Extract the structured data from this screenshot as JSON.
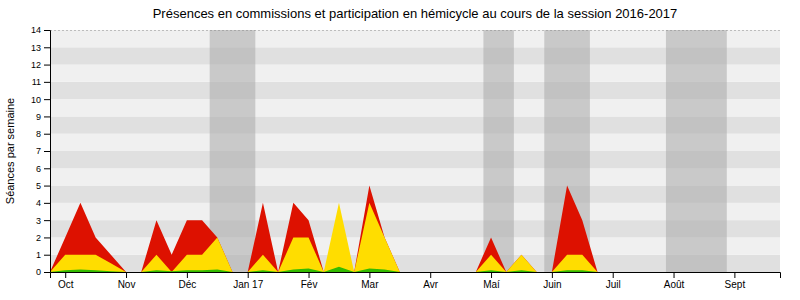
{
  "chart_data": {
    "type": "area",
    "stacked": false,
    "title": "Présences en commissions et participation en hémicycle au cours de la session 2016-2017",
    "ylabel": "Séances par semaine",
    "x": [
      0,
      1,
      2,
      3,
      4,
      5,
      6,
      7,
      8,
      9,
      10,
      11,
      12,
      13,
      14,
      15,
      16,
      17,
      18,
      19,
      20,
      21,
      22,
      23,
      24,
      25,
      26,
      27,
      28,
      29,
      30,
      31,
      32,
      33,
      34,
      35,
      36,
      37,
      38,
      39,
      40,
      41,
      42,
      43,
      44,
      45,
      46,
      47
    ],
    "xlim": [
      0,
      48
    ],
    "xticks": [
      {
        "value": 1,
        "label": "Oct"
      },
      {
        "value": 5,
        "label": "Nov"
      },
      {
        "value": 9,
        "label": "Déc"
      },
      {
        "value": 13,
        "label": "Jan 17"
      },
      {
        "value": 17,
        "label": "Fév"
      },
      {
        "value": 21,
        "label": "Mar"
      },
      {
        "value": 25,
        "label": "Avr"
      },
      {
        "value": 29,
        "label": "Maí"
      },
      {
        "value": 33,
        "label": "Juin"
      },
      {
        "value": 37,
        "label": "Juil"
      },
      {
        "value": 41,
        "label": "Août"
      },
      {
        "value": 45,
        "label": "Sept"
      }
    ],
    "ylim": [
      0,
      14
    ],
    "yticks": [
      0,
      1,
      2,
      3,
      4,
      5,
      6,
      7,
      8,
      9,
      10,
      11,
      12,
      13,
      14
    ],
    "shade_regions": [
      [
        10.5,
        13.5
      ],
      [
        28.5,
        30.5
      ],
      [
        32.5,
        35.5
      ],
      [
        40.5,
        44.5
      ]
    ],
    "series": [
      {
        "color": "#dd1100",
        "values": [
          0,
          2,
          4,
          2,
          1,
          0,
          0,
          3,
          1,
          3,
          3,
          2,
          0,
          0,
          4,
          0,
          4,
          3,
          0,
          2,
          0,
          5,
          2,
          0,
          0,
          0,
          0,
          0,
          0,
          2,
          0,
          1,
          0,
          0,
          5,
          3,
          0,
          0,
          0,
          0,
          0,
          0,
          0,
          0,
          0,
          0,
          0,
          0
        ]
      },
      {
        "color": "#ffdd00",
        "values": [
          0,
          1,
          1,
          1,
          0.5,
          0,
          0,
          1,
          0,
          1,
          1,
          2,
          0,
          0,
          1,
          0,
          2,
          2,
          0,
          4,
          0,
          4,
          2,
          0,
          0,
          0,
          0,
          0,
          0,
          1,
          0,
          1,
          0,
          0,
          1,
          1,
          0,
          0,
          0,
          0,
          0,
          0,
          0,
          0,
          0,
          0,
          0,
          0
        ]
      },
      {
        "color": "#33bb00",
        "values": [
          0,
          0.1,
          0.15,
          0.1,
          0.05,
          0,
          0,
          0.1,
          0.05,
          0.1,
          0.1,
          0.15,
          0,
          0,
          0.1,
          0,
          0.15,
          0.2,
          0,
          0.3,
          0,
          0.2,
          0.15,
          0,
          0,
          0,
          0,
          0,
          0,
          0.1,
          0,
          0.1,
          0,
          0,
          0.1,
          0.1,
          0,
          0,
          0,
          0,
          0,
          0,
          0,
          0,
          0,
          0,
          0,
          0
        ]
      }
    ]
  }
}
